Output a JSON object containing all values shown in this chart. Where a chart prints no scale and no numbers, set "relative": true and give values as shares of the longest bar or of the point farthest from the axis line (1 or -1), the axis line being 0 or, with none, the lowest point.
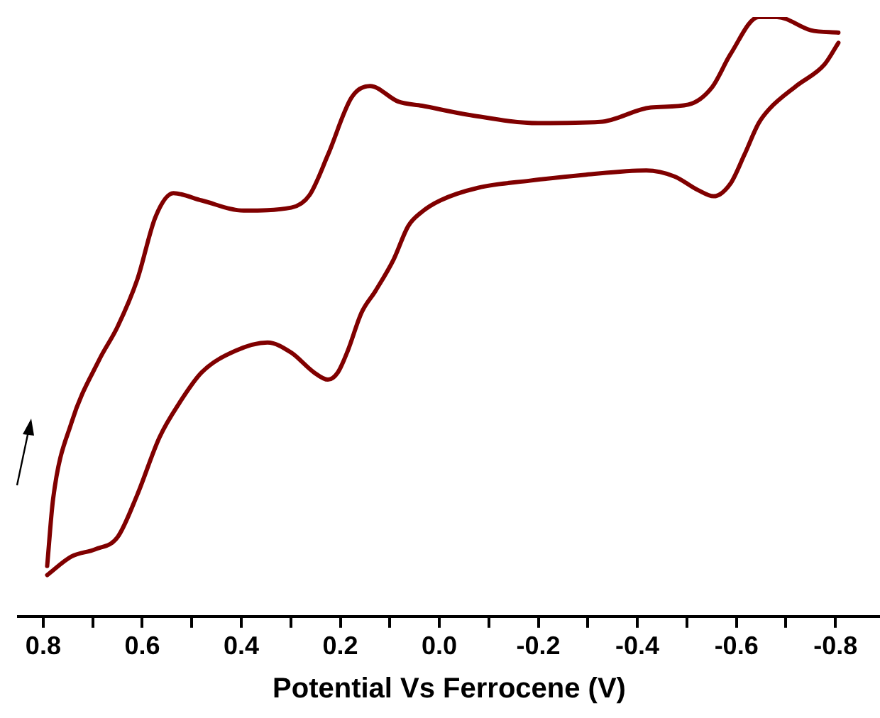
{
  "chart_data": {
    "type": "line",
    "relative": true,
    "xlabel": "Potential Vs Ferrocene (V)",
    "xlim": [
      0.85,
      -0.89
    ],
    "xticks": [
      0.8,
      {
        "value": 0.7,
        "label": null
      },
      0.6,
      {
        "value": 0.5,
        "label": null
      },
      0.4,
      {
        "value": 0.3,
        "label": null
      },
      0.2,
      {
        "value": 0.1,
        "label": null
      },
      {
        "value": 0,
        "label": "0.0"
      },
      {
        "value": -0.1,
        "label": null
      },
      -0.2,
      {
        "value": -0.3,
        "label": null
      },
      -0.4,
      {
        "value": -0.5,
        "label": null
      },
      -0.6,
      {
        "value": -0.7,
        "label": null
      },
      -0.8
    ],
    "grid": false,
    "legend": false,
    "marker": "none",
    "line_style": "solid",
    "series": [
      {
        "color": "#800000",
        "x": [
          0.792,
          0.78,
          0.743,
          0.687,
          0.65,
          0.61,
          0.573,
          0.537,
          0.48,
          0.395,
          0.299,
          0.262,
          0.225,
          0.177,
          0.14,
          0.083,
          0.035,
          -0.058,
          -0.2,
          -0.325,
          -0.427,
          -0.503,
          -0.551,
          -0.588,
          -0.645,
          -0.682,
          -0.75,
          -0.806
        ],
        "values": [
          0.084,
          0.196,
          0.323,
          0.428,
          0.483,
          0.562,
          0.667,
          0.706,
          0.694,
          0.677,
          0.682,
          0.703,
          0.77,
          0.866,
          0.885,
          0.859,
          0.852,
          0.837,
          0.823,
          0.825,
          0.849,
          0.854,
          0.883,
          0.938,
          1,
          1,
          0.978,
          0.974
        ]
      },
      {
        "color": "#800000",
        "x": [
          -0.806,
          -0.778,
          -0.721,
          -0.667,
          -0.645,
          -0.616,
          -0.588,
          -0.554,
          -0.523,
          -0.475,
          -0.418,
          -0.296,
          -0.183,
          -0.078,
          -0.002,
          0.035,
          0.063,
          0.092,
          0.129,
          0.157,
          0.185,
          0.205,
          0.225,
          0.253,
          0.299,
          0.347,
          0.412,
          0.48,
          0.525,
          0.565,
          0.61,
          0.65,
          0.695,
          0.743,
          0.792
        ],
        "values": [
          0.957,
          0.921,
          0.885,
          0.847,
          0.823,
          0.77,
          0.722,
          0.701,
          0.711,
          0.734,
          0.744,
          0.737,
          0.727,
          0.715,
          0.694,
          0.675,
          0.651,
          0.596,
          0.543,
          0.507,
          0.443,
          0.407,
          0.395,
          0.407,
          0.44,
          0.457,
          0.443,
          0.407,
          0.356,
          0.299,
          0.203,
          0.132,
          0.112,
          0.1,
          0.069
        ]
      }
    ]
  }
}
